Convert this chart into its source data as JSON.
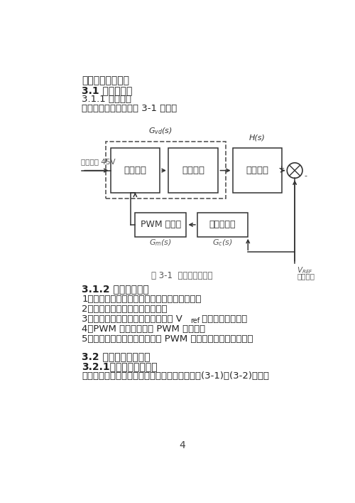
{
  "title_line1": "三、课题设计方案",
  "section_31": "3.1 系统的组成",
  "section_311": "3.1.1 闭环系统",
  "section_311_text": "闭环系统的框图如下图 3-1 所示：",
  "fig_caption": "图 3-1  闭环系统的框图",
  "section_312_title": "3.1.2 各部分的功能",
  "item1": "1、直流变换：将输入的交流电转换为直流电。",
  "item2": "2、控制对象：控制实验的对象。",
  "item3a": "3、采样网络：采样电压与参考电压 V",
  "item3b": "ref 比较产生的偏差。",
  "item4": "4、PWM 控制器：控制 PWM 的波形。",
  "item5": "5、补偿控制器：校正后来调节 PWM 控制器的波形的占空比。",
  "section_32": "3.2 主电路部分的设计",
  "section_321": "3.2.1、滤波电感的设计",
  "section_321_text": "开关管闭合与导通状态的基尔霍夫电压方程如式(3-1)、(3-2)所示：",
  "page_num": "4",
  "bg_color": "#ffffff",
  "lc": "#333333",
  "box1_label": "直流变换",
  "box2_label": "控制对象",
  "box3_label": "采样网络",
  "box4_label": "PWM 控制器",
  "box5_label": "补偿控制器",
  "input_label": "输入电压 45V",
  "vref_label2": "参考电压",
  "plus_label": "+",
  "minus_label": "-"
}
